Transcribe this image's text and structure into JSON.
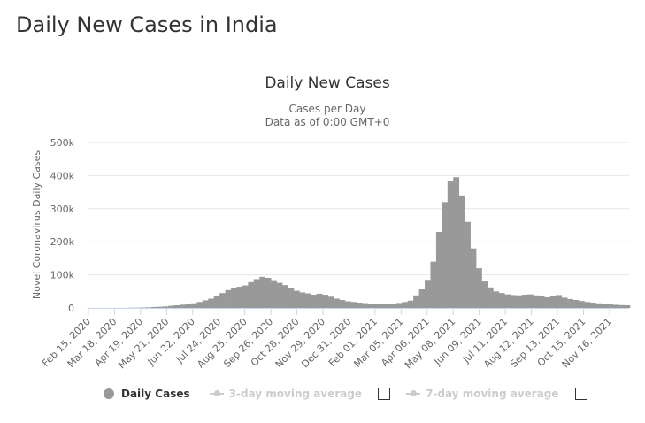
{
  "page": {
    "title": "Daily New Cases in India"
  },
  "legend": {
    "daily_label": "Daily Cases",
    "ma3_label": "3-day moving average",
    "ma7_label": "7-day moving average"
  },
  "colors": {
    "bars": "#999999",
    "grid": "#e6e6e6",
    "text": "#333333",
    "axis_text": "#666666",
    "legend_hidden": "#cccccc"
  },
  "chart_data": {
    "type": "bar",
    "title": "Daily New Cases",
    "subtitle_lines": [
      "Cases per Day",
      "Data as of 0:00 GMT+0"
    ],
    "ylabel": "Novel Coronavirus Daily Cases",
    "xlabel": "",
    "ylim": [
      0,
      500000
    ],
    "yticks": [
      0,
      100000,
      200000,
      300000,
      400000,
      500000
    ],
    "ytick_labels": [
      "0",
      "100k",
      "200k",
      "300k",
      "400k",
      "500k"
    ],
    "xtick_labels": [
      "Feb 15, 2020",
      "Mar 18, 2020",
      "Apr 19, 2020",
      "May 21, 2020",
      "Jun 22, 2020",
      "Jul 24, 2020",
      "Aug 25, 2020",
      "Sep 26, 2020",
      "Oct 28, 2020",
      "Nov 29, 2020",
      "Dec 31, 2020",
      "Feb 01, 2021",
      "Mar 05, 2021",
      "Apr 06, 2021",
      "May 08, 2021",
      "Jun 09, 2021",
      "Jul 11, 2021",
      "Aug 12, 2021",
      "Sep 13, 2021",
      "Oct 15, 2021",
      "Nov 16, 2021"
    ],
    "grid": true,
    "legend_position": "bottom",
    "series": [
      {
        "name": "Daily Cases",
        "granularity": "weekly average of daily values",
        "x": [
          "2020-02-15",
          "2020-02-22",
          "2020-02-29",
          "2020-03-07",
          "2020-03-14",
          "2020-03-21",
          "2020-03-28",
          "2020-04-04",
          "2020-04-11",
          "2020-04-18",
          "2020-04-25",
          "2020-05-02",
          "2020-05-09",
          "2020-05-16",
          "2020-05-23",
          "2020-05-30",
          "2020-06-06",
          "2020-06-13",
          "2020-06-20",
          "2020-06-27",
          "2020-07-04",
          "2020-07-11",
          "2020-07-18",
          "2020-07-25",
          "2020-08-01",
          "2020-08-08",
          "2020-08-15",
          "2020-08-22",
          "2020-08-29",
          "2020-09-05",
          "2020-09-12",
          "2020-09-19",
          "2020-09-26",
          "2020-10-03",
          "2020-10-10",
          "2020-10-17",
          "2020-10-24",
          "2020-10-31",
          "2020-11-07",
          "2020-11-14",
          "2020-11-21",
          "2020-11-28",
          "2020-12-05",
          "2020-12-12",
          "2020-12-19",
          "2020-12-26",
          "2021-01-02",
          "2021-01-09",
          "2021-01-16",
          "2021-01-23",
          "2021-01-30",
          "2021-02-06",
          "2021-02-13",
          "2021-02-20",
          "2021-02-27",
          "2021-03-06",
          "2021-03-13",
          "2021-03-20",
          "2021-03-27",
          "2021-04-03",
          "2021-04-10",
          "2021-04-17",
          "2021-04-24",
          "2021-05-01",
          "2021-05-08",
          "2021-05-15",
          "2021-05-22",
          "2021-05-29",
          "2021-06-05",
          "2021-06-12",
          "2021-06-19",
          "2021-06-26",
          "2021-07-03",
          "2021-07-10",
          "2021-07-17",
          "2021-07-24",
          "2021-07-31",
          "2021-08-07",
          "2021-08-14",
          "2021-08-21",
          "2021-08-28",
          "2021-09-04",
          "2021-09-11",
          "2021-09-18",
          "2021-09-25",
          "2021-10-02",
          "2021-10-09",
          "2021-10-16",
          "2021-10-23",
          "2021-10-30",
          "2021-11-06",
          "2021-11-13",
          "2021-11-20",
          "2021-11-27",
          "2021-12-04"
        ],
        "values": [
          0,
          0,
          0,
          5,
          15,
          80,
          150,
          500,
          800,
          1200,
          1700,
          2800,
          3500,
          4500,
          6500,
          8000,
          9800,
          11500,
          14000,
          18000,
          23000,
          28000,
          35000,
          45000,
          54000,
          60000,
          64000,
          68000,
          78000,
          87000,
          94000,
          91000,
          84000,
          76000,
          69000,
          60000,
          52000,
          47000,
          44000,
          40000,
          43000,
          40000,
          34000,
          28000,
          24000,
          20000,
          18000,
          16000,
          14500,
          13500,
          12000,
          11500,
          11000,
          12500,
          15000,
          18000,
          22000,
          38000,
          56000,
          85000,
          140000,
          230000,
          320000,
          385000,
          395000,
          340000,
          260000,
          180000,
          120000,
          80000,
          62000,
          50000,
          45000,
          41000,
          39000,
          38000,
          40000,
          41000,
          38000,
          35000,
          32000,
          36000,
          39000,
          31000,
          27000,
          24000,
          21000,
          18000,
          16000,
          14000,
          12500,
          11000,
          9500,
          8500,
          8000
        ]
      },
      {
        "name": "3-day moving average",
        "visible": false
      },
      {
        "name": "7-day moving average",
        "visible": false
      }
    ]
  }
}
